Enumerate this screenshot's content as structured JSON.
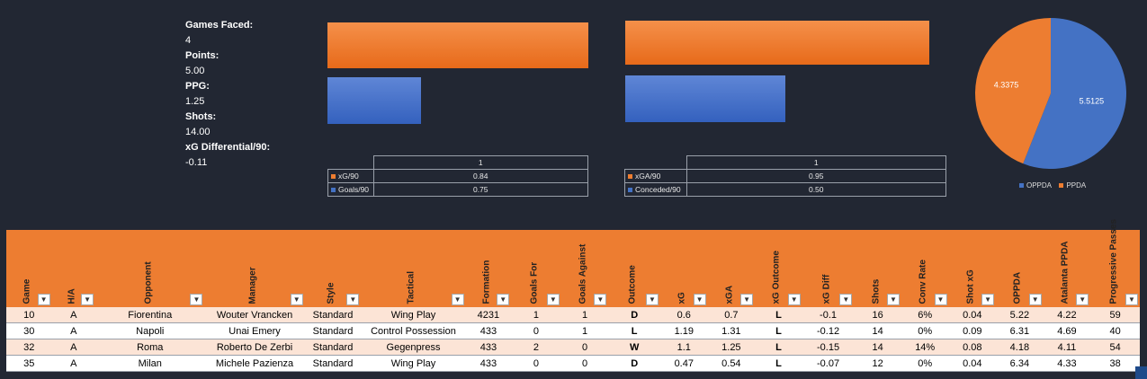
{
  "summary": [
    {
      "label": "Games Faced:",
      "value": "4"
    },
    {
      "label": "Points:",
      "value": "5.00"
    },
    {
      "label": "PPG:",
      "value": "1.25"
    },
    {
      "label": "Shots:",
      "value": "14.00"
    },
    {
      "label": "xG Differential/90:",
      "value": "-0.11"
    }
  ],
  "attack_chart": {
    "header": "1",
    "rows": [
      {
        "label": "xG/90",
        "value": "0.84",
        "color": "#ed7d31"
      },
      {
        "label": "Goals/90",
        "value": "0.75",
        "color": "#4472c4"
      }
    ]
  },
  "defense_chart": {
    "header": "1",
    "rows": [
      {
        "label": "xGA/90",
        "value": "0.95",
        "color": "#ed7d31"
      },
      {
        "label": "Conceded/90",
        "value": "0.50",
        "color": "#4472c4"
      }
    ]
  },
  "pie": {
    "slices": [
      {
        "name": "OPPDA",
        "value": "5.5125",
        "color": "#4472c4"
      },
      {
        "name": "PPDA",
        "value": "4.3375",
        "color": "#ed7d31"
      }
    ]
  },
  "table": {
    "columns": [
      "Game",
      "H/A",
      "Opponent",
      "Manager",
      "Style",
      "Tactical",
      "Formation",
      "Goals For",
      "Goals Against",
      "Outcome",
      "xG",
      "xGA",
      "xG Outcome",
      "xG Diff",
      "Shots",
      "Conv Rate",
      "Shot xG",
      "OPPDA",
      "Atalanta PPDA",
      "Progressive Passes"
    ],
    "rows": [
      [
        "10",
        "A",
        "Fiorentina",
        "Wouter Vrancken",
        "Standard",
        "Wing Play",
        "4231",
        "1",
        "1",
        "D",
        "0.6",
        "0.7",
        "L",
        "-0.1",
        "16",
        "6%",
        "0.04",
        "5.22",
        "4.22",
        "59"
      ],
      [
        "30",
        "A",
        "Napoli",
        "Unai Emery",
        "Standard",
        "Control Possession",
        "433",
        "0",
        "1",
        "L",
        "1.19",
        "1.31",
        "L",
        "-0.12",
        "14",
        "0%",
        "0.09",
        "6.31",
        "4.69",
        "40"
      ],
      [
        "32",
        "A",
        "Roma",
        "Roberto De Zerbi",
        "Standard",
        "Gegenpress",
        "433",
        "2",
        "0",
        "W",
        "1.1",
        "1.25",
        "L",
        "-0.15",
        "14",
        "14%",
        "0.08",
        "4.18",
        "4.11",
        "54"
      ],
      [
        "35",
        "A",
        "Milan",
        "Michele Pazienza",
        "Standard",
        "Wing Play",
        "433",
        "0",
        "0",
        "D",
        "0.47",
        "0.54",
        "L",
        "-0.07",
        "12",
        "0%",
        "0.04",
        "6.34",
        "4.33",
        "38"
      ]
    ]
  }
}
